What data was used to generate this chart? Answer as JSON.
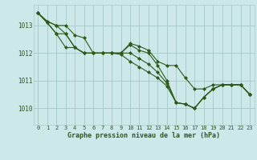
{
  "background_color": "#cce8e8",
  "grid_color": "#aacccc",
  "line_color": "#2d5a1b",
  "marker_color": "#2d5a1b",
  "title": "Graphe pression niveau de la mer (hPa)",
  "xlim": [
    -0.5,
    23.5
  ],
  "ylim": [
    1009.4,
    1013.75
  ],
  "yticks": [
    1010,
    1011,
    1012,
    1013
  ],
  "xticks": [
    0,
    1,
    2,
    3,
    4,
    5,
    6,
    7,
    8,
    9,
    10,
    11,
    12,
    13,
    14,
    15,
    16,
    17,
    18,
    19,
    20,
    21,
    22,
    23
  ],
  "series": [
    [
      1013.45,
      1013.15,
      1013.0,
      1013.0,
      1012.65,
      1012.55,
      1012.0,
      1012.0,
      1012.0,
      1012.0,
      1012.3,
      1012.1,
      1012.0,
      1011.55,
      1011.0,
      1010.2,
      1010.15,
      1010.0,
      1010.4,
      1010.7,
      1010.85,
      1010.85,
      1010.85,
      1010.5
    ],
    [
      1013.45,
      1013.15,
      1013.0,
      1012.7,
      1012.2,
      1012.0,
      1012.0,
      1012.0,
      1012.0,
      1012.0,
      1012.0,
      1011.8,
      1011.6,
      1011.3,
      1010.9,
      1010.2,
      1010.15,
      1010.0,
      1010.4,
      1010.7,
      1010.85,
      1010.85,
      1010.85,
      1010.5
    ],
    [
      1013.45,
      1013.1,
      1012.7,
      1012.2,
      1012.2,
      1012.0,
      1012.0,
      1012.0,
      1012.0,
      1011.95,
      1011.7,
      1011.5,
      1011.3,
      1011.1,
      1010.8,
      1010.2,
      1010.15,
      1010.0,
      1010.4,
      1010.7,
      1010.85,
      1010.85,
      1010.85,
      1010.5
    ],
    [
      1013.45,
      1013.1,
      1012.7,
      1012.7,
      1012.2,
      1012.0,
      1012.0,
      1012.0,
      1012.0,
      1012.0,
      1012.35,
      1012.25,
      1012.1,
      1011.7,
      1011.55,
      1011.55,
      1011.1,
      1010.7,
      1010.7,
      1010.85,
      1010.85,
      1010.85,
      1010.85,
      1010.5
    ]
  ]
}
